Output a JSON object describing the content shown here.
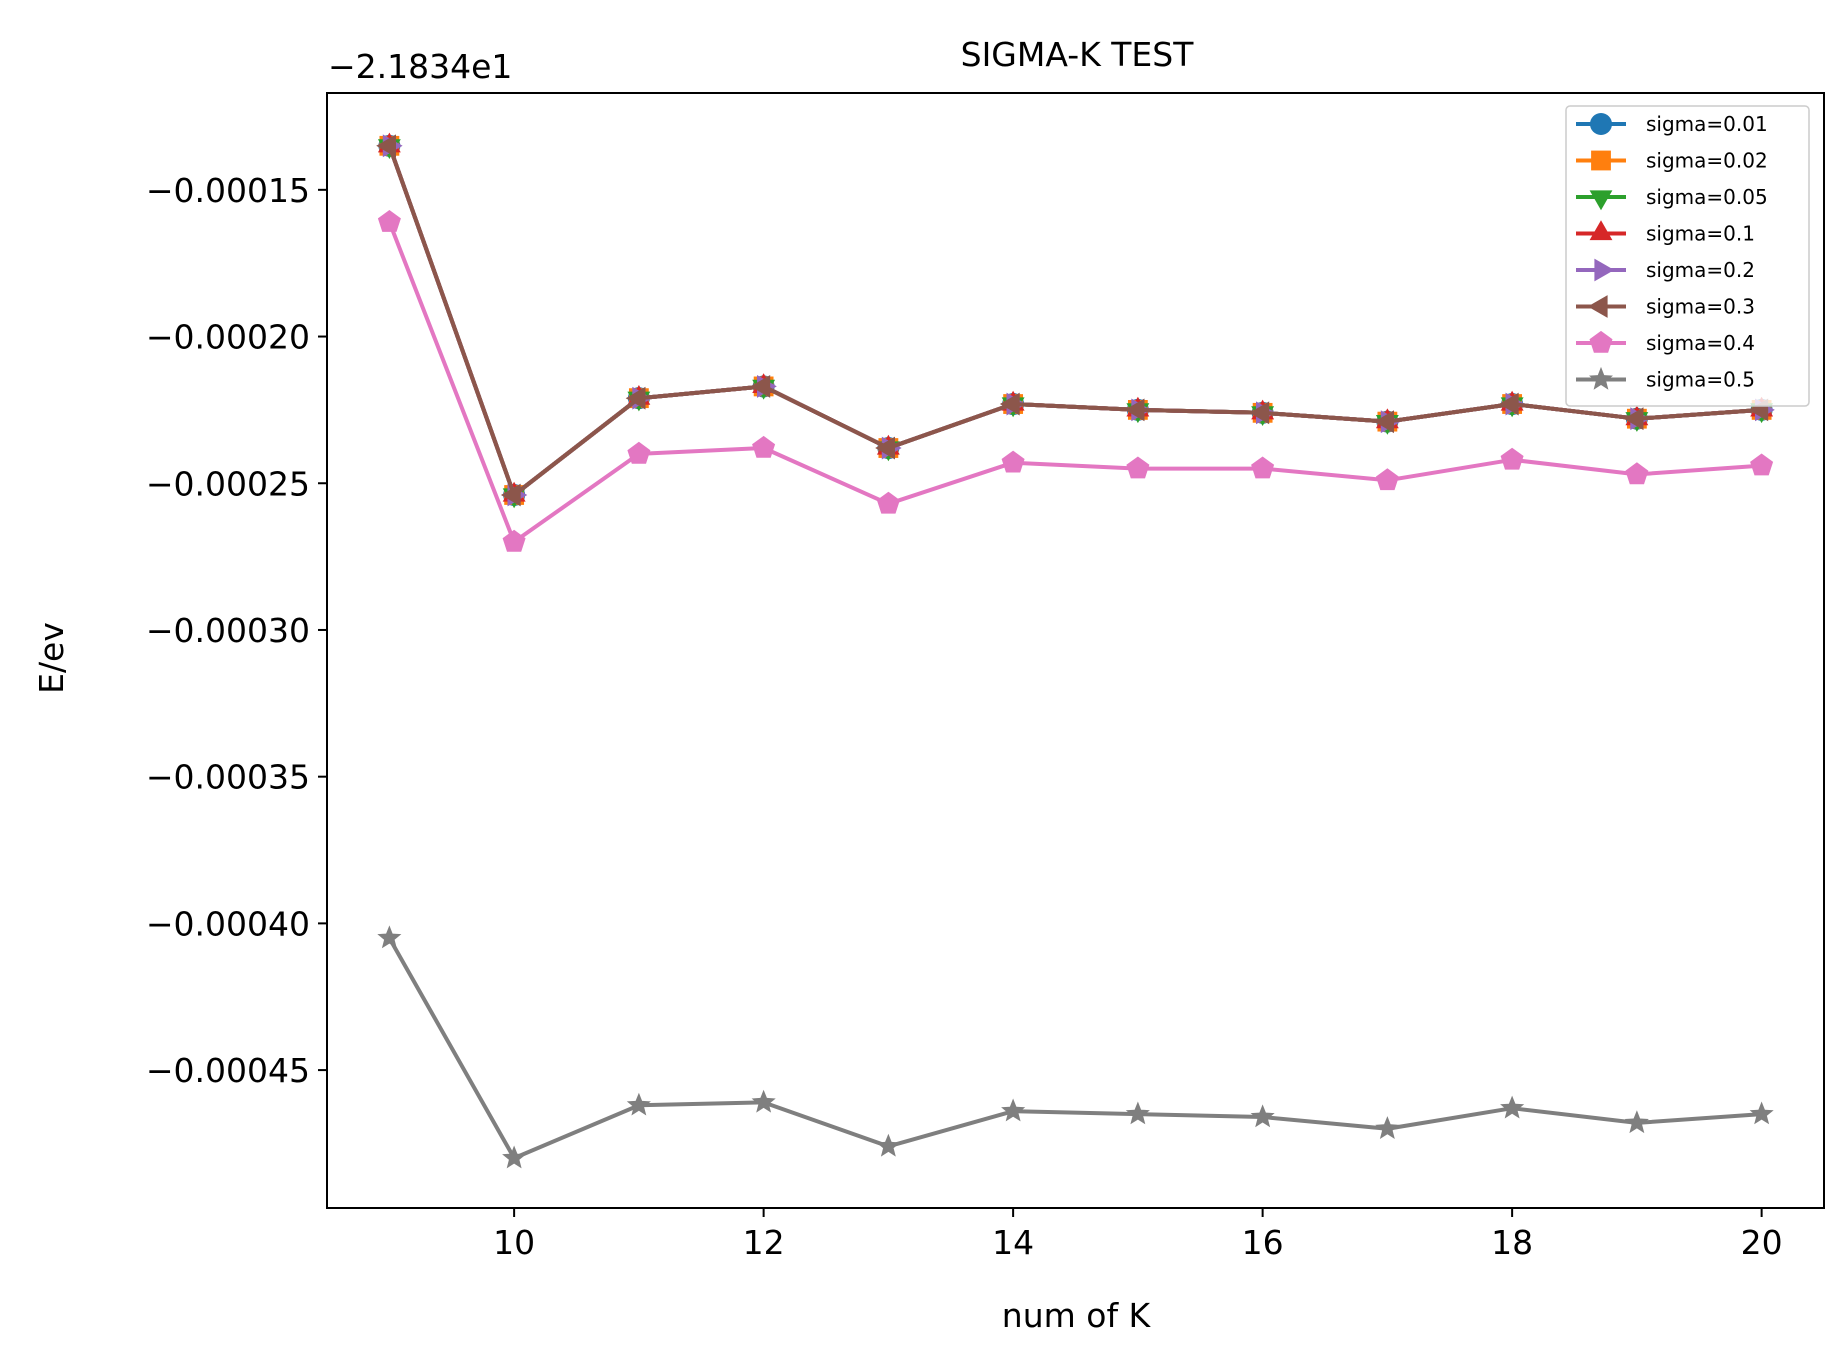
{
  "chart_data": {
    "type": "line",
    "title": "SIGMA-K TEST",
    "xlabel": "num of K",
    "ylabel": "E/ev",
    "offset_label": "−2.1834e1",
    "xlim": [
      8.5,
      20.5
    ],
    "ylim": [
      -0.000497,
      -0.000117
    ],
    "xticks": [
      10,
      12,
      14,
      16,
      18,
      20
    ],
    "xtick_labels": [
      "10",
      "12",
      "14",
      "16",
      "18",
      "20"
    ],
    "yticks": [
      -0.00015,
      -0.0002,
      -0.00025,
      -0.0003,
      -0.00035,
      -0.0004,
      -0.00045
    ],
    "ytick_labels": [
      "−0.00015",
      "−0.00020",
      "−0.00025",
      "−0.00030",
      "−0.00035",
      "−0.00040",
      "−0.00045"
    ],
    "grid": false,
    "legend_position": "top-right",
    "x": [
      9,
      10,
      11,
      12,
      13,
      14,
      15,
      16,
      17,
      18,
      19,
      20
    ],
    "series": [
      {
        "name": "sigma=0.01",
        "color": "#1f77b4",
        "marker": "circle",
        "values": [
          -0.000135,
          -0.000254,
          -0.000221,
          -0.000217,
          -0.000238,
          -0.000223,
          -0.000225,
          -0.000226,
          -0.000229,
          -0.000223,
          -0.000228,
          -0.000225
        ]
      },
      {
        "name": "sigma=0.02",
        "color": "#ff7f0e",
        "marker": "square",
        "values": [
          -0.000135,
          -0.000254,
          -0.000221,
          -0.000217,
          -0.000238,
          -0.000223,
          -0.000225,
          -0.000226,
          -0.000229,
          -0.000223,
          -0.000228,
          -0.000225
        ]
      },
      {
        "name": "sigma=0.05",
        "color": "#2ca02c",
        "marker": "triangle-down",
        "values": [
          -0.000135,
          -0.000254,
          -0.000221,
          -0.000217,
          -0.000238,
          -0.000223,
          -0.000225,
          -0.000226,
          -0.000229,
          -0.000223,
          -0.000228,
          -0.000225
        ]
      },
      {
        "name": "sigma=0.1",
        "color": "#d62728",
        "marker": "triangle-up",
        "values": [
          -0.000135,
          -0.000254,
          -0.000221,
          -0.000217,
          -0.000238,
          -0.000223,
          -0.000225,
          -0.000226,
          -0.000229,
          -0.000223,
          -0.000228,
          -0.000225
        ]
      },
      {
        "name": "sigma=0.2",
        "color": "#9467bd",
        "marker": "triangle-right",
        "values": [
          -0.000135,
          -0.000254,
          -0.000221,
          -0.000217,
          -0.000238,
          -0.000223,
          -0.000225,
          -0.000226,
          -0.000229,
          -0.000223,
          -0.000228,
          -0.000225
        ]
      },
      {
        "name": "sigma=0.3",
        "color": "#8c564b",
        "marker": "triangle-left",
        "values": [
          -0.000135,
          -0.000254,
          -0.000221,
          -0.000217,
          -0.000238,
          -0.000223,
          -0.000225,
          -0.000226,
          -0.000229,
          -0.000223,
          -0.000228,
          -0.000225
        ]
      },
      {
        "name": "sigma=0.4",
        "color": "#e377c2",
        "marker": "pentagon",
        "values": [
          -0.000161,
          -0.00027,
          -0.00024,
          -0.000238,
          -0.000257,
          -0.000243,
          -0.000245,
          -0.000245,
          -0.000249,
          -0.000242,
          -0.000247,
          -0.000244
        ]
      },
      {
        "name": "sigma=0.5",
        "color": "#7f7f7f",
        "marker": "star",
        "values": [
          -0.000405,
          -0.00048,
          -0.000462,
          -0.000461,
          -0.000476,
          -0.000464,
          -0.000465,
          -0.000466,
          -0.00047,
          -0.000463,
          -0.000468,
          -0.000465
        ]
      }
    ]
  }
}
